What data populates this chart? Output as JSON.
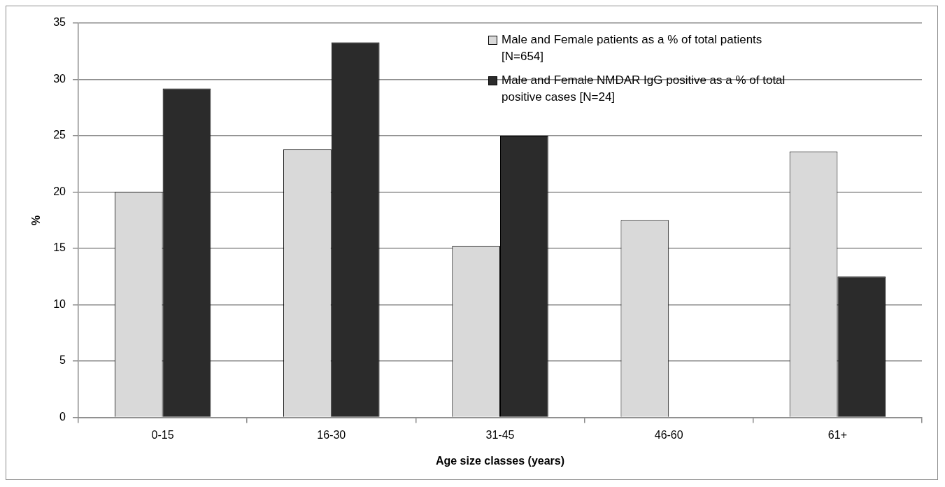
{
  "chart_data": {
    "type": "bar",
    "xlabel": "Age size classes (years)",
    "ylabel": "%",
    "categories": [
      "0-15",
      "16-30",
      "31-45",
      "46-60",
      "61+"
    ],
    "series": [
      {
        "name": "Male and Female patients as a % of total patients [N=654]",
        "color": "#d9d9d9",
        "values": [
          20.0,
          23.8,
          15.2,
          17.5,
          23.6
        ]
      },
      {
        "name": "Male and Female NMDAR IgG positive as a % of total positive cases [N=24]",
        "color": "#2b2b2b",
        "values": [
          29.2,
          33.3,
          25.0,
          0,
          12.5
        ]
      }
    ],
    "ylim": [
      0,
      35
    ],
    "yticks": [
      0,
      5,
      10,
      15,
      20,
      25,
      30,
      35
    ],
    "grid": "y",
    "legend": "top right"
  }
}
